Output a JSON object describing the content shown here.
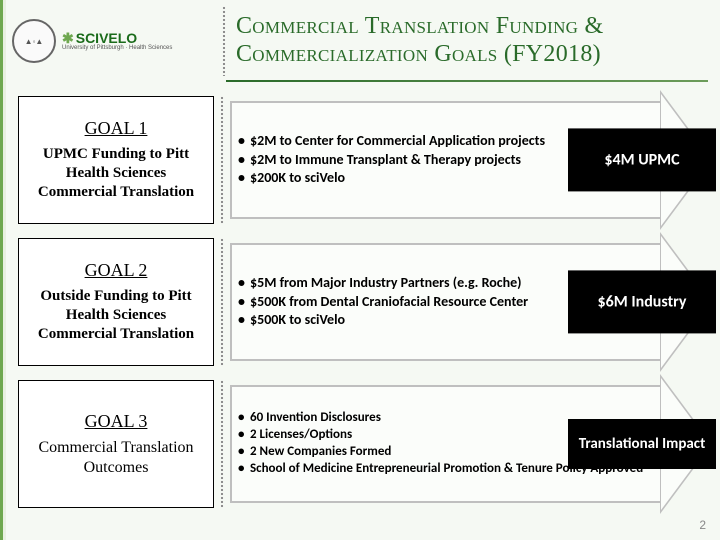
{
  "header": {
    "seal_text": "▲◦▲",
    "brand": "SCIVELO",
    "brand_sub": "University of Pittsburgh · Health Sciences",
    "title_line1": "Commercial Translation Funding &",
    "title_line2": "Commercialization Goals (FY2018)"
  },
  "goals": [
    {
      "title": "GOAL 1",
      "desc": "UPMC Funding to Pitt Health Sciences Commercial Translation",
      "desc_style": "bold",
      "bullets": [
        "$2M to Center for Commercial Application projects",
        "$2M to Immune Transplant & Therapy projects",
        "$200K to sciVelo"
      ],
      "badge": "$4M UPMC"
    },
    {
      "title": "GOAL 2",
      "desc": "Outside Funding to Pitt Health Sciences Commercial Translation",
      "desc_style": "bold",
      "bullets": [
        "$5M from Major Industry Partners (e.g. Roche)",
        "$500K from Dental Craniofacial Resource Center",
        "$500K to sciVelo"
      ],
      "badge": "$6M Industry"
    },
    {
      "title": "GOAL 3",
      "desc": "Commercial Translation Outcomes",
      "desc_style": "normal",
      "bullets": [
        "60 Invention Disclosures",
        "2 Licenses/Options",
        "2 New Companies Formed",
        "School of Medicine Entrepreneurial Promotion & Tenure Policy Approved"
      ],
      "badge": "Translational Impact"
    }
  ],
  "page_number": "2",
  "styling": {
    "accent_color": "#2a6b2a",
    "badge_bg": "#000000",
    "badge_fg": "#ffffff",
    "arrow_border": "#bfbfbf",
    "body_bg": "#f5f9f3"
  }
}
